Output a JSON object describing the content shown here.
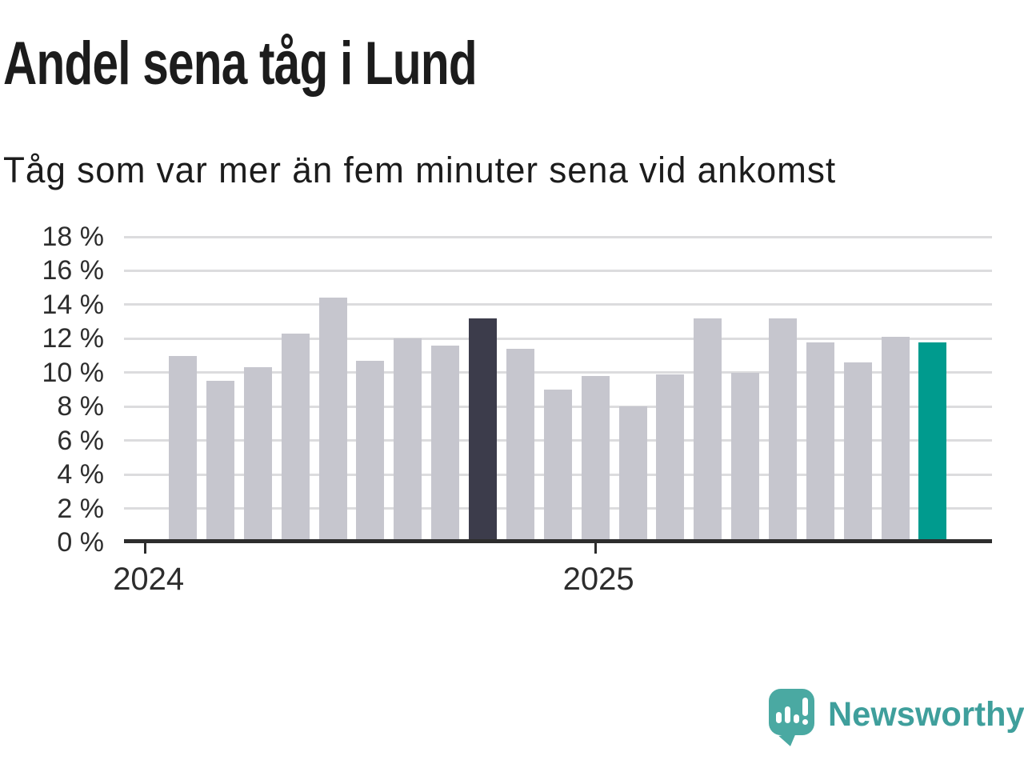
{
  "header": {
    "title": "Andel sena tåg i Lund",
    "subtitle": "Tåg som var mer än fem minuter sena vid ankomst"
  },
  "chart_data": {
    "type": "bar",
    "title": "Andel sena tåg i Lund",
    "subtitle": "Tåg som var mer än fem minuter sena vid ankomst",
    "unit": "%",
    "categories": [
      "2024-02",
      "2024-03",
      "2024-04",
      "2024-05",
      "2024-06",
      "2024-07",
      "2024-08",
      "2024-09",
      "2024-10",
      "2024-11",
      "2024-12",
      "2025-01",
      "2025-02",
      "2025-03",
      "2025-04",
      "2025-05",
      "2025-06",
      "2025-07",
      "2025-08",
      "2025-09",
      "2025-10"
    ],
    "values": [
      11.0,
      9.5,
      10.3,
      12.3,
      14.4,
      10.7,
      12.0,
      11.6,
      13.2,
      11.4,
      9.0,
      9.8,
      8.0,
      9.9,
      13.2,
      10.0,
      13.2,
      11.8,
      10.6,
      12.1,
      11.8
    ],
    "ylim": [
      0,
      18
    ],
    "y_tick_step": 2,
    "y_tick_labels": [
      "18 %",
      "16 %",
      "14 %",
      "12 %",
      "10 %",
      "8 %",
      "6 %",
      "4 %",
      "2 %",
      "0 %"
    ],
    "x_ticks": [
      {
        "label": "2024",
        "month_offset": 0
      },
      {
        "label": "2025",
        "month_offset": 12
      }
    ],
    "start_month_offset": 1,
    "grid": "horizontal",
    "legend_position": "none",
    "colors": {
      "bar_default": "#c6c6ce",
      "bar_highlight_dark": "#3c3c4b",
      "bar_highlight_teal": "#009b8e",
      "gridline": "#dcdcde",
      "axis": "#2d2d2d",
      "text": "#1c1c1c"
    },
    "highlight_dark_index": 8,
    "highlight_teal_index": 20
  },
  "footer": {
    "brand": "Newsworthy",
    "logo_icon": "speech-bubble-bar-chart-icon",
    "brand_color": "#3f9f9c",
    "logo_bubble_color": "#4aa9a2"
  }
}
